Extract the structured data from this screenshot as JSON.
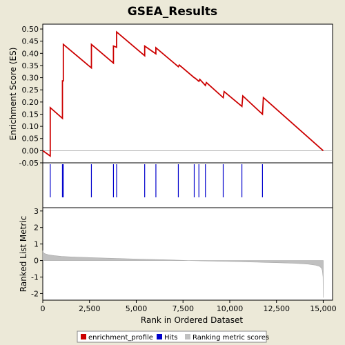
{
  "title": "GSEA_Results",
  "colors": {
    "background": "#ece9d8",
    "plot_bg": "#ffffff",
    "profile": "#cc0000",
    "hits": "#0000cc",
    "metric": "#c0c0c0"
  },
  "chart_data": [
    {
      "type": "line",
      "panel": "enrichment",
      "ylabel": "Enrichment Score (ES)",
      "ylim": [
        -0.05,
        0.52
      ],
      "yticks": [
        "0.50",
        "0.45",
        "0.40",
        "0.35",
        "0.30",
        "0.25",
        "0.20",
        "0.15",
        "0.10",
        "0.05",
        "0.00",
        "-0.05"
      ],
      "yticks_values": [
        0.5,
        0.45,
        0.4,
        0.35,
        0.3,
        0.25,
        0.2,
        0.15,
        0.1,
        0.05,
        0.0,
        -0.05
      ],
      "series": [
        {
          "name": "enrichment_profile",
          "x": [
            0,
            400,
            400,
            1050,
            1050,
            1100,
            1100,
            2600,
            2600,
            3780,
            3780,
            3950,
            3950,
            5450,
            5450,
            6050,
            6050,
            7250,
            7300,
            8100,
            8150,
            8350,
            8400,
            8700,
            8750,
            9650,
            9700,
            10650,
            10700,
            11750,
            11800,
            15000
          ],
          "values": [
            0.0,
            -0.022,
            0.177,
            0.133,
            0.287,
            0.287,
            0.437,
            0.34,
            0.437,
            0.36,
            0.43,
            0.425,
            0.488,
            0.39,
            0.43,
            0.398,
            0.423,
            0.345,
            0.352,
            0.3,
            0.298,
            0.285,
            0.293,
            0.268,
            0.28,
            0.218,
            0.243,
            0.182,
            0.225,
            0.15,
            0.218,
            0.0
          ]
        }
      ]
    },
    {
      "type": "scatter",
      "panel": "hits",
      "series": [
        {
          "name": "Hits",
          "x": [
            400,
            1050,
            1100,
            2600,
            3780,
            3950,
            5450,
            6050,
            7250,
            8100,
            8350,
            8700,
            9650,
            10650,
            11750
          ]
        }
      ]
    },
    {
      "type": "area",
      "panel": "ranked_metric",
      "ylabel": "Ranked List Metric",
      "xlabel": "Rank in Ordered Dataset",
      "ylim": [
        -2.4,
        3.2
      ],
      "yticks": [
        "3",
        "2",
        "1",
        "0",
        "-1",
        "-2"
      ],
      "yticks_values": [
        3,
        2,
        1,
        0,
        -1,
        -2
      ],
      "xlim": [
        0,
        15500
      ],
      "xticks": [
        "0",
        "2,500",
        "5,000",
        "7,500",
        "10,000",
        "12,500",
        "15,000"
      ],
      "xticks_values": [
        0,
        2500,
        5000,
        7500,
        10000,
        12500,
        15000
      ],
      "series": [
        {
          "name": "Ranking metric scores",
          "x": [
            0,
            50,
            150,
            300,
            600,
            1000,
            1500,
            2500,
            3500,
            5000,
            6500,
            7800,
            8500,
            10000,
            11500,
            12500,
            13500,
            14200,
            14600,
            14800,
            14900,
            14950,
            14990,
            15000
          ],
          "values": [
            0.6,
            0.45,
            0.4,
            0.35,
            0.3,
            0.25,
            0.22,
            0.18,
            0.14,
            0.09,
            0.05,
            0.0,
            -0.02,
            -0.06,
            -0.1,
            -0.13,
            -0.17,
            -0.22,
            -0.28,
            -0.35,
            -0.45,
            -0.6,
            -1.0,
            -2.25
          ]
        }
      ]
    }
  ],
  "legend": {
    "items": [
      {
        "label": "enrichment_profile",
        "color": "#cc0000"
      },
      {
        "label": "Hits",
        "color": "#0000cc"
      },
      {
        "label": "Ranking metric scores",
        "color": "#c0c0c0"
      }
    ]
  }
}
